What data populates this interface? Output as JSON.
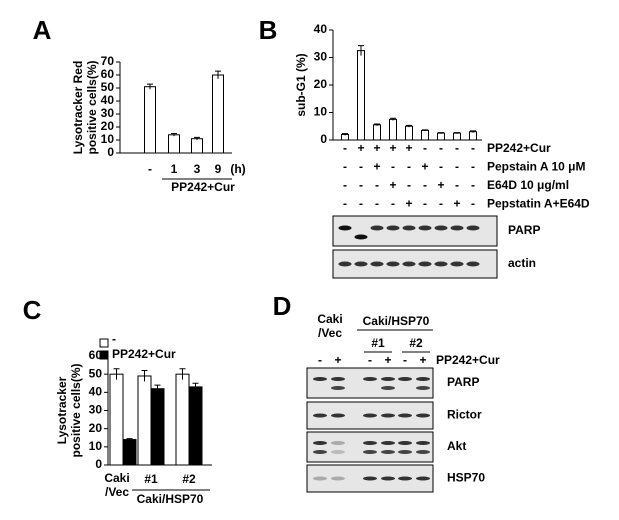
{
  "panel_labels": [
    "A",
    "B",
    "C",
    "D"
  ],
  "chart_data": [
    {
      "type": "bar",
      "y_label": "Lysotracker Red\npositive cells(%)",
      "categories": [
        "-",
        "1",
        "3",
        "9"
      ],
      "x_unit": "(h)",
      "x_label": "PP242+Cur",
      "values": [
        51,
        14,
        11,
        60
      ],
      "errors": [
        2,
        1,
        1,
        3
      ],
      "color": "#ffffff",
      "ylim": [
        0,
        70
      ],
      "yticks": [
        0,
        10,
        20,
        30,
        40,
        50,
        60,
        70
      ]
    },
    {
      "type": "bar",
      "y_label": "sub-G1 (%)",
      "categories": [
        null,
        null,
        null,
        null,
        null,
        null,
        null,
        null,
        null
      ],
      "values": [
        2,
        32.5,
        5.5,
        7.5,
        5,
        3.5,
        2.5,
        2.5,
        3
      ],
      "errors": [
        0.3,
        1.8,
        0.3,
        0.4,
        0.3,
        0.2,
        0.2,
        0.2,
        0.3
      ],
      "color": "#ffffff",
      "ylim": [
        0,
        40
      ],
      "yticks": [
        0,
        10,
        20,
        30,
        40
      ],
      "treatments": [
        {
          "name": "PP242+Cur",
          "signs": [
            "-",
            "+",
            "+",
            "+",
            "+",
            "-",
            "-",
            "-",
            "-"
          ]
        },
        {
          "name": "Pepstain A 10 μM",
          "signs": [
            "-",
            "-",
            "+",
            "-",
            "-",
            "+",
            "-",
            "-",
            "-"
          ]
        },
        {
          "name": "E64D 10 μg/ml",
          "signs": [
            "-",
            "-",
            "-",
            "+",
            "-",
            "-",
            "+",
            "-",
            "-"
          ]
        },
        {
          "name": "Pepstatin A+E64D",
          "signs": [
            "-",
            "-",
            "-",
            "-",
            "+",
            "-",
            "-",
            "+",
            "-"
          ]
        }
      ]
    },
    {
      "type": "grouped_bar",
      "y_label": "Lysotracker\npositive cells(%)",
      "categories": [
        "Caki\n/Vec",
        "#1",
        "#2"
      ],
      "group_label": "Caki/HSP70",
      "series": [
        {
          "name": "-",
          "color": "#ffffff",
          "values": [
            50,
            49,
            50
          ],
          "errors": [
            3,
            3,
            3
          ]
        },
        {
          "name": "PP242+Cur",
          "color": "#000000",
          "values": [
            14,
            42,
            43
          ],
          "errors": [
            0.5,
            2,
            2
          ]
        }
      ],
      "ylim": [
        0,
        60
      ],
      "yticks": [
        0,
        10,
        20,
        30,
        40,
        50,
        60
      ]
    }
  ],
  "blot_b": {
    "labels": [
      "PARP",
      "actin"
    ]
  },
  "blot_d": {
    "header": {
      "control": "Caki\n/Vec",
      "group": "Caki/HSP70",
      "clones": [
        "#1",
        "#2"
      ]
    },
    "treatment": {
      "name": "PP242+Cur",
      "signs": [
        "-",
        "+",
        "-",
        "+",
        "-",
        "+"
      ]
    },
    "labels": [
      "PARP",
      "Rictor",
      "Akt",
      "HSP70"
    ]
  }
}
